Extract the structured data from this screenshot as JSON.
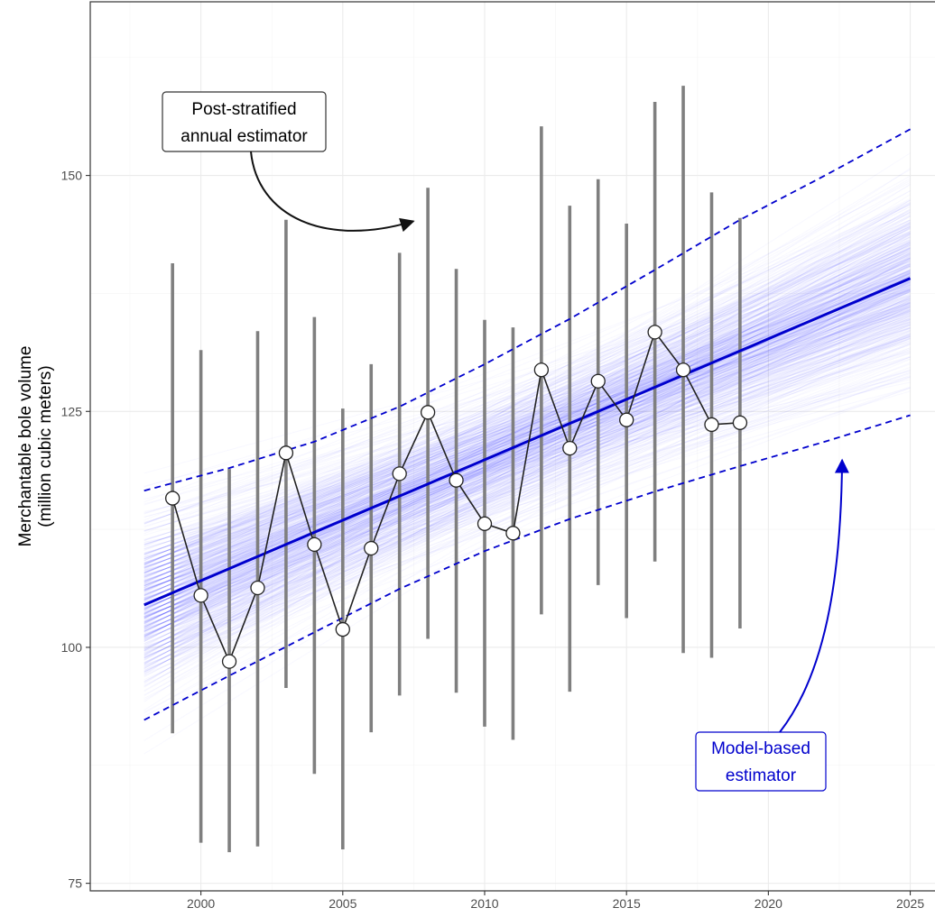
{
  "chart_data": {
    "type": "line",
    "title": "",
    "ylabel_line1": "Merchantable bole volume",
    "ylabel_line2": "(million cubic meters)",
    "xlabel": "",
    "xlim": [
      1996.1,
      2026.0
    ],
    "ylim": [
      74.2,
      168.4
    ],
    "x_ticks": [
      2000,
      2005,
      2010,
      2015,
      2020,
      2025
    ],
    "y_ticks": [
      75,
      100,
      125,
      150
    ],
    "grid": true,
    "series": [
      {
        "kind": "points-with-intervals",
        "x": [
          1999,
          2000,
          2001,
          2002,
          2003,
          2004,
          2005,
          2006,
          2007,
          2008,
          2009,
          2010,
          2011,
          2012,
          2013,
          2014,
          2015,
          2016,
          2017,
          2018,
          2019
        ],
        "y": [
          115.8,
          105.5,
          98.5,
          106.3,
          120.6,
          110.9,
          101.9,
          110.5,
          118.4,
          124.9,
          117.7,
          113.1,
          112.1,
          129.4,
          121.1,
          128.2,
          124.1,
          133.4,
          129.4,
          123.6,
          123.8
        ],
        "lower": [
          90.9,
          79.3,
          78.3,
          78.9,
          95.7,
          86.6,
          78.6,
          91.0,
          94.9,
          100.9,
          95.2,
          91.6,
          90.2,
          103.5,
          95.3,
          106.6,
          103.1,
          109.1,
          99.4,
          98.9,
          102.0
        ],
        "upper": [
          140.7,
          131.5,
          118.9,
          133.5,
          145.3,
          135.0,
          125.3,
          130.0,
          141.8,
          148.7,
          140.1,
          134.7,
          133.9,
          155.2,
          146.8,
          149.6,
          144.9,
          157.8,
          159.5,
          148.2,
          145.5
        ]
      },
      {
        "kind": "trend-line",
        "x": [
          1998,
          2025
        ],
        "y": [
          104.5,
          139.1
        ]
      },
      {
        "kind": "prediction-band-upper",
        "x": [
          1998,
          2001,
          2004,
          2007,
          2010,
          2013,
          2016,
          2019,
          2022,
          2025
        ],
        "y": [
          116.6,
          119.0,
          121.8,
          125.5,
          130.0,
          134.8,
          140.0,
          145.3,
          150.0,
          154.9
        ]
      },
      {
        "kind": "prediction-band-lower",
        "x": [
          1998,
          2001,
          2004,
          2007,
          2010,
          2013,
          2016,
          2019,
          2022,
          2025
        ],
        "y": [
          92.3,
          97.0,
          101.6,
          106.2,
          110.2,
          113.6,
          116.5,
          119.2,
          121.8,
          124.6
        ]
      }
    ],
    "annotations": [
      {
        "label_line1": "Post-stratified",
        "label_line2": "annual estimator",
        "color": "#000000",
        "points_to_x": 2008,
        "points_to_y": 145.2
      },
      {
        "label_line1": "Model-based",
        "label_line2": "estimator",
        "color": "#0000cd",
        "points_to_x": 2022.6,
        "points_to_y": 120.8
      }
    ],
    "colors": {
      "points_fill": "#ffffff",
      "points_stroke": "#222222",
      "interval_bars": "#7f7f7f",
      "trend": "#0000cd",
      "band": "#0000cd",
      "spaghetti": "#3333ff",
      "grid_major": "#ebebeb",
      "grid_minor": "#f4f4f4",
      "panel_border": "#333333"
    }
  }
}
